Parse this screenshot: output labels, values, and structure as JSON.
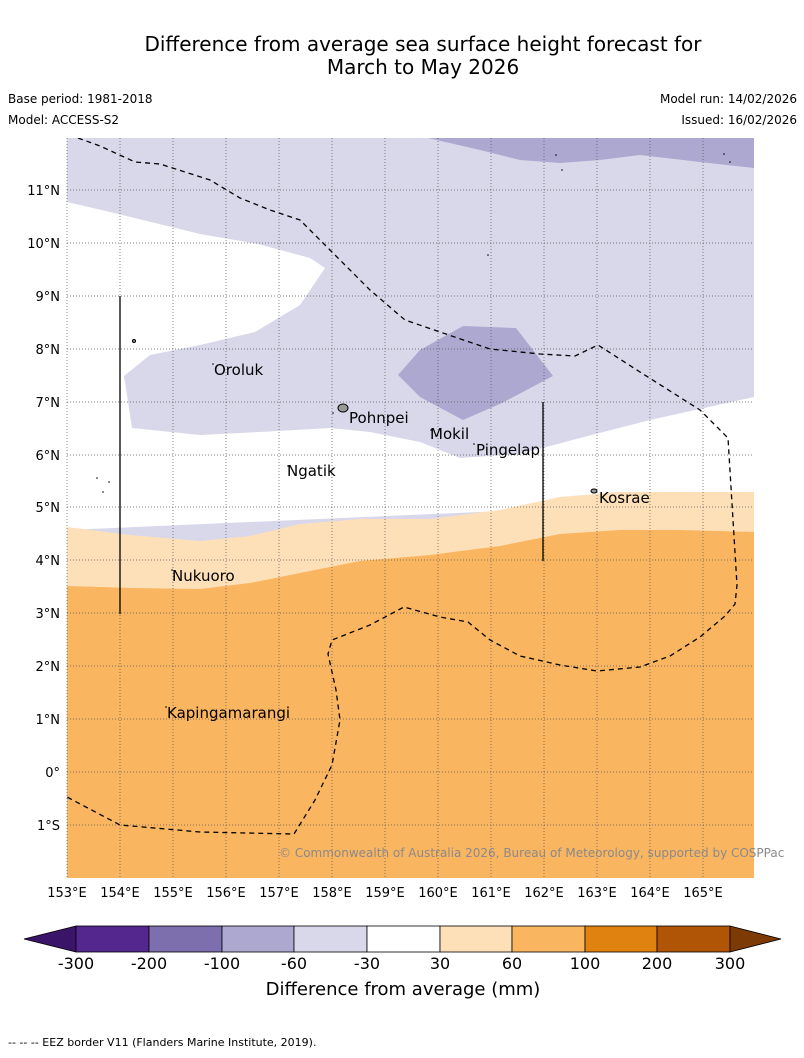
{
  "title_line1": "Difference from average sea surface height forecast for",
  "title_line2": "March to May 2026",
  "base_period": "Base period: 1981-2018",
  "model": "Model: ACCESS-S2",
  "model_run": "Model run: 14/02/2026",
  "issued": "Issued: 16/02/2026",
  "copyright": "© Commonwealth of Australia 2026, Bureau of Meteorology, supported by COSPPac",
  "lat_labels": [
    "11°N",
    "10°N",
    "9°N",
    "8°N",
    "7°N",
    "6°N",
    "5°N",
    "4°N",
    "3°N",
    "2°N",
    "1°N",
    "0°",
    "1°S"
  ],
  "lon_labels": [
    "153°E",
    "154°E",
    "155°E",
    "156°E",
    "157°E",
    "158°E",
    "159°E",
    "160°E",
    "161°E",
    "162°E",
    "163°E",
    "164°E",
    "165°E"
  ],
  "places": [
    "Oroluk",
    "Pohnpei",
    "Mokil",
    "Pingelap",
    "Ngatik",
    "Kosrae",
    "Nukuoro",
    "Kapingamarangi"
  ],
  "colorbar": {
    "ticks": [
      "-300",
      "-200",
      "-100",
      "-60",
      "-30",
      "30",
      "60",
      "100",
      "200",
      "300"
    ],
    "colors": [
      "#3a1468",
      "#54278f",
      "#7d6fae",
      "#aca8d0",
      "#d8d8ea",
      "#ffffff",
      "#fde0b8",
      "#fab560",
      "#e0820f",
      "#b05406",
      "#7d3a05"
    ],
    "title": "Difference from average (mm)"
  },
  "legend_footer": "-- -- -- EEZ border V11 (Flanders Marine Institute, 2019)."
}
